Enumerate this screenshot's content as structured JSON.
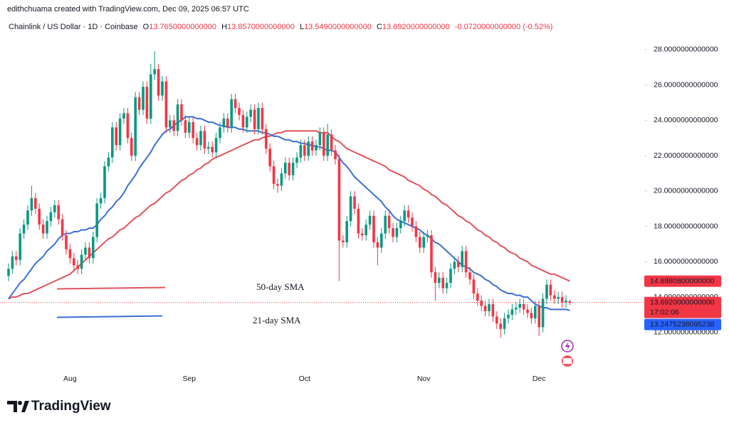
{
  "header": {
    "attribution": "edithchuama created with TradingView.com, Dec 09, 2025 06:57 UTC"
  },
  "chart_data": {
    "type": "candlestick",
    "title": "Chainlink / US Dollar · 1D · Coinbase",
    "ohlc_legend": [
      {
        "key": "O",
        "text": "13.7650000000000"
      },
      {
        "key": "H",
        "text": "13.8570000000000"
      },
      {
        "key": "L",
        "text": "13.5490000000000"
      },
      {
        "key": "C",
        "text": "13.6920000000000"
      }
    ],
    "change_text": "-0.0720000000000 (-0.52%)",
    "categories": [
      null,
      null,
      null,
      null,
      null,
      null,
      null,
      null,
      null,
      null,
      null,
      null,
      null,
      null,
      null,
      null,
      "Aug",
      null,
      null,
      null,
      null,
      null,
      null,
      null,
      null,
      null,
      null,
      null,
      null,
      null,
      null,
      null,
      null,
      null,
      null,
      null,
      null,
      null,
      null,
      null,
      null,
      null,
      null,
      null,
      null,
      null,
      null,
      "Sep",
      null,
      null,
      null,
      null,
      null,
      null,
      null,
      null,
      null,
      null,
      null,
      null,
      null,
      null,
      null,
      null,
      null,
      null,
      null,
      null,
      null,
      null,
      null,
      null,
      null,
      null,
      null,
      null,
      null,
      "Oct",
      null,
      null,
      null,
      null,
      null,
      null,
      null,
      null,
      null,
      null,
      null,
      null,
      null,
      null,
      null,
      null,
      null,
      null,
      null,
      null,
      null,
      null,
      null,
      null,
      null,
      null,
      null,
      null,
      null,
      null,
      "Nov",
      null,
      null,
      null,
      null,
      null,
      null,
      null,
      null,
      null,
      null,
      null,
      null,
      null,
      null,
      null,
      null,
      null,
      null,
      null,
      null,
      null,
      null,
      null,
      null,
      null,
      null,
      null,
      null,
      null,
      "Dec",
      null,
      null,
      null,
      null,
      null,
      null,
      null,
      null
    ],
    "ohlc": [
      [
        15.2,
        15.9,
        14.9,
        15.6
      ],
      [
        15.6,
        16.6,
        15.3,
        16.3
      ],
      [
        16.3,
        16.6,
        15.8,
        16.1
      ],
      [
        16.1,
        17.9,
        15.8,
        17.6
      ],
      [
        17.6,
        18.4,
        17.3,
        18.1
      ],
      [
        18.1,
        19.2,
        17.8,
        18.9
      ],
      [
        18.9,
        20.3,
        18.6,
        19.6
      ],
      [
        19.6,
        19.9,
        18.7,
        19.0
      ],
      [
        19.0,
        19.3,
        17.8,
        18.1
      ],
      [
        18.1,
        18.4,
        17.3,
        17.6
      ],
      [
        17.6,
        18.6,
        17.3,
        18.3
      ],
      [
        18.3,
        19.1,
        18.0,
        18.8
      ],
      [
        18.8,
        19.5,
        18.5,
        19.2
      ],
      [
        19.2,
        19.5,
        18.1,
        18.4
      ],
      [
        18.4,
        18.7,
        17.2,
        17.5
      ],
      [
        17.5,
        17.8,
        16.4,
        16.7
      ],
      [
        16.7,
        17.0,
        15.9,
        16.2
      ],
      [
        16.2,
        16.5,
        15.5,
        15.8
      ],
      [
        15.8,
        16.1,
        15.3,
        15.6
      ],
      [
        15.6,
        16.7,
        15.3,
        16.4
      ],
      [
        16.4,
        17.1,
        16.1,
        16.8
      ],
      [
        16.8,
        17.1,
        15.9,
        16.2
      ],
      [
        16.2,
        17.7,
        15.9,
        17.4
      ],
      [
        17.4,
        19.6,
        17.1,
        19.3
      ],
      [
        19.3,
        19.9,
        19.0,
        19.6
      ],
      [
        19.6,
        21.7,
        19.3,
        21.4
      ],
      [
        21.4,
        22.2,
        21.1,
        21.9
      ],
      [
        21.9,
        23.9,
        21.6,
        23.6
      ],
      [
        23.6,
        23.9,
        22.3,
        22.6
      ],
      [
        22.6,
        24.4,
        22.3,
        24.1
      ],
      [
        24.1,
        24.7,
        23.8,
        24.4
      ],
      [
        24.4,
        24.7,
        22.7,
        23.0
      ],
      [
        23.0,
        23.3,
        21.7,
        22.0
      ],
      [
        22.0,
        25.6,
        21.7,
        25.3
      ],
      [
        25.3,
        25.6,
        24.3,
        24.6
      ],
      [
        24.6,
        26.2,
        24.3,
        25.9
      ],
      [
        25.9,
        26.2,
        23.8,
        24.1
      ],
      [
        24.1,
        27.2,
        23.8,
        26.6
      ],
      [
        26.6,
        27.9,
        26.3,
        26.9
      ],
      [
        26.9,
        27.2,
        25.1,
        25.4
      ],
      [
        25.4,
        26.5,
        25.1,
        26.2
      ],
      [
        26.2,
        26.5,
        23.3,
        23.6
      ],
      [
        23.6,
        24.3,
        23.3,
        24.0
      ],
      [
        24.0,
        24.3,
        23.1,
        23.4
      ],
      [
        23.4,
        25.2,
        23.1,
        24.9
      ],
      [
        24.9,
        25.2,
        23.7,
        24.0
      ],
      [
        24.0,
        24.3,
        23.0,
        23.3
      ],
      [
        23.3,
        24.2,
        23.0,
        23.9
      ],
      [
        23.9,
        24.2,
        22.7,
        23.0
      ],
      [
        23.0,
        23.3,
        22.3,
        22.6
      ],
      [
        22.6,
        23.7,
        22.3,
        23.4
      ],
      [
        23.4,
        23.7,
        22.1,
        22.4
      ],
      [
        22.4,
        22.8,
        22.1,
        22.5
      ],
      [
        22.5,
        22.8,
        21.9,
        22.2
      ],
      [
        22.2,
        23.3,
        21.9,
        23.0
      ],
      [
        23.0,
        23.9,
        22.7,
        23.6
      ],
      [
        23.6,
        24.4,
        23.3,
        24.1
      ],
      [
        24.1,
        24.4,
        23.3,
        23.6
      ],
      [
        23.6,
        25.5,
        23.3,
        25.2
      ],
      [
        25.2,
        25.5,
        24.4,
        24.7
      ],
      [
        24.7,
        25.0,
        24.0,
        24.3
      ],
      [
        24.3,
        24.6,
        23.3,
        23.6
      ],
      [
        23.6,
        24.5,
        23.3,
        24.2
      ],
      [
        24.2,
        24.9,
        23.9,
        24.6
      ],
      [
        24.6,
        24.9,
        23.2,
        23.5
      ],
      [
        23.5,
        25.0,
        23.2,
        24.7
      ],
      [
        24.7,
        25.0,
        23.2,
        23.5
      ],
      [
        23.5,
        23.8,
        22.1,
        22.4
      ],
      [
        22.4,
        22.7,
        21.1,
        21.4
      ],
      [
        21.4,
        21.7,
        20.1,
        20.4
      ],
      [
        20.4,
        20.7,
        19.9,
        20.3
      ],
      [
        20.3,
        21.3,
        20.0,
        21.0
      ],
      [
        21.0,
        21.9,
        20.7,
        21.6
      ],
      [
        21.6,
        21.9,
        20.6,
        20.9
      ],
      [
        20.9,
        21.9,
        20.6,
        21.6
      ],
      [
        21.6,
        22.2,
        21.3,
        21.9
      ],
      [
        21.9,
        22.9,
        21.6,
        22.6
      ],
      [
        22.6,
        22.9,
        21.7,
        22.0
      ],
      [
        22.0,
        23.1,
        21.7,
        22.8
      ],
      [
        22.8,
        23.1,
        22.0,
        22.3
      ],
      [
        22.3,
        22.9,
        22.0,
        22.6
      ],
      [
        22.6,
        23.6,
        22.3,
        23.3
      ],
      [
        23.3,
        23.6,
        21.7,
        22.0
      ],
      [
        22.0,
        23.8,
        21.7,
        23.2
      ],
      [
        23.2,
        23.5,
        22.0,
        22.3
      ],
      [
        22.3,
        22.6,
        21.5,
        21.8
      ],
      [
        21.8,
        22.1,
        14.9,
        17.2
      ],
      [
        17.2,
        17.5,
        16.8,
        17.1
      ],
      [
        17.1,
        18.6,
        16.8,
        18.3
      ],
      [
        18.3,
        20.0,
        18.0,
        19.7
      ],
      [
        19.7,
        20.0,
        18.7,
        19.0
      ],
      [
        19.0,
        19.3,
        17.3,
        17.6
      ],
      [
        17.6,
        17.9,
        17.2,
        17.5
      ],
      [
        17.5,
        18.4,
        17.2,
        18.1
      ],
      [
        18.1,
        18.9,
        17.8,
        18.6
      ],
      [
        18.6,
        18.9,
        16.8,
        17.1
      ],
      [
        17.1,
        17.4,
        15.8,
        16.8
      ],
      [
        16.8,
        17.9,
        16.5,
        17.6
      ],
      [
        17.6,
        18.9,
        17.3,
        18.6
      ],
      [
        18.6,
        18.9,
        17.6,
        17.9
      ],
      [
        17.9,
        18.2,
        17.1,
        17.4
      ],
      [
        17.4,
        18.2,
        17.1,
        17.9
      ],
      [
        17.9,
        18.6,
        17.6,
        18.3
      ],
      [
        18.3,
        19.2,
        18.0,
        18.9
      ],
      [
        18.9,
        19.2,
        18.2,
        18.5
      ],
      [
        18.5,
        18.8,
        17.7,
        18.0
      ],
      [
        18.0,
        18.3,
        17.1,
        17.4
      ],
      [
        17.4,
        17.7,
        16.5,
        16.8
      ],
      [
        16.8,
        17.7,
        16.5,
        17.4
      ],
      [
        17.4,
        17.8,
        17.1,
        17.5
      ],
      [
        17.5,
        17.8,
        15.1,
        15.4
      ],
      [
        15.4,
        15.7,
        13.8,
        14.8
      ],
      [
        14.8,
        15.4,
        14.5,
        15.1
      ],
      [
        15.1,
        15.4,
        14.2,
        14.5
      ],
      [
        14.5,
        15.1,
        14.2,
        14.8
      ],
      [
        14.8,
        15.9,
        14.5,
        15.6
      ],
      [
        15.6,
        16.3,
        15.3,
        16.0
      ],
      [
        16.0,
        16.3,
        15.4,
        15.7
      ],
      [
        15.7,
        16.9,
        15.4,
        16.6
      ],
      [
        16.6,
        16.9,
        15.1,
        15.4
      ],
      [
        15.4,
        15.7,
        14.7,
        15.0
      ],
      [
        15.0,
        15.3,
        13.9,
        14.2
      ],
      [
        14.2,
        14.5,
        13.5,
        13.8
      ],
      [
        13.8,
        14.1,
        13.2,
        13.5
      ],
      [
        13.5,
        13.8,
        12.9,
        13.2
      ],
      [
        13.2,
        13.9,
        12.9,
        13.6
      ],
      [
        13.6,
        13.9,
        12.6,
        12.9
      ],
      [
        12.9,
        13.2,
        12.2,
        12.5
      ],
      [
        12.5,
        12.8,
        11.7,
        12.2
      ],
      [
        12.2,
        13.1,
        11.9,
        12.8
      ],
      [
        12.8,
        13.3,
        12.5,
        13.0
      ],
      [
        13.0,
        13.6,
        12.7,
        13.3
      ],
      [
        13.3,
        13.7,
        13.0,
        13.4
      ],
      [
        13.4,
        13.9,
        13.1,
        13.6
      ],
      [
        13.6,
        13.9,
        13.0,
        13.3
      ],
      [
        13.3,
        13.6,
        12.8,
        13.1
      ],
      [
        13.1,
        13.4,
        12.5,
        12.8
      ],
      [
        12.8,
        13.8,
        12.5,
        13.5
      ],
      [
        13.5,
        13.8,
        11.8,
        12.3
      ],
      [
        12.3,
        14.2,
        12.0,
        13.9
      ],
      [
        13.9,
        15.0,
        13.6,
        14.7
      ],
      [
        14.7,
        15.0,
        13.8,
        14.1
      ],
      [
        14.1,
        14.4,
        13.6,
        13.9
      ],
      [
        13.9,
        14.3,
        13.6,
        14.0
      ],
      [
        14.0,
        14.3,
        13.4,
        13.7
      ],
      [
        13.7,
        14.1,
        13.4,
        13.8
      ],
      [
        13.765,
        13.857,
        13.549,
        13.692
      ]
    ],
    "up_color": "#089981",
    "down_color": "#f23645",
    "series": [
      {
        "name": "50-day SMA",
        "color": "#e0535c",
        "values": [
          13.9,
          14.0,
          14.0,
          14.1,
          14.2,
          14.2,
          14.3,
          14.4,
          14.5,
          14.6,
          14.7,
          14.8,
          14.9,
          15.0,
          15.1,
          15.2,
          15.3,
          15.5,
          15.7,
          15.9,
          16.1,
          16.3,
          16.5,
          16.7,
          16.9,
          17.1,
          17.3,
          17.4,
          17.6,
          17.8,
          17.9,
          18.1,
          18.3,
          18.5,
          18.6,
          18.8,
          19.0,
          19.2,
          19.3,
          19.5,
          19.7,
          19.9,
          20.0,
          20.2,
          20.4,
          20.6,
          20.7,
          20.9,
          21.0,
          21.2,
          21.3,
          21.5,
          21.6,
          21.8,
          21.9,
          22.0,
          22.1,
          22.2,
          22.3,
          22.4,
          22.5,
          22.6,
          22.7,
          22.8,
          22.9,
          22.9,
          23.0,
          23.1,
          23.1,
          23.2,
          23.3,
          23.3,
          23.4,
          23.4,
          23.4,
          23.4,
          23.4,
          23.4,
          23.4,
          23.4,
          23.4,
          23.3,
          23.3,
          23.3,
          23.1,
          22.9,
          22.8,
          22.6,
          22.4,
          22.3,
          22.2,
          22.1,
          22.0,
          21.9,
          21.8,
          21.7,
          21.6,
          21.5,
          21.4,
          21.2,
          21.1,
          21.0,
          20.9,
          20.8,
          20.6,
          20.5,
          20.4,
          20.3,
          20.1,
          20.0,
          19.8,
          19.7,
          19.5,
          19.3,
          19.2,
          19.0,
          18.8,
          18.6,
          18.5,
          18.3,
          18.2,
          18.0,
          17.8,
          17.7,
          17.5,
          17.4,
          17.2,
          17.1,
          16.9,
          16.8,
          16.6,
          16.5,
          16.4,
          16.2,
          16.1,
          16.0,
          15.8,
          15.7,
          15.6,
          15.5,
          15.4,
          15.3,
          15.3,
          15.2,
          15.1,
          15.0,
          14.89808
        ]
      },
      {
        "name": "21-day SMA",
        "color": "#3b6fd4",
        "values": [
          13.9,
          14.2,
          14.5,
          14.8,
          15.0,
          15.3,
          15.6,
          15.9,
          16.1,
          16.3,
          16.6,
          16.8,
          17.0,
          17.3,
          17.5,
          17.6,
          17.6,
          17.7,
          17.7,
          17.8,
          17.8,
          17.9,
          17.9,
          18.1,
          18.4,
          18.6,
          18.9,
          19.1,
          19.4,
          19.6,
          19.9,
          20.3,
          20.6,
          20.9,
          21.3,
          21.6,
          21.9,
          22.2,
          22.6,
          22.9,
          23.2,
          23.4,
          23.5,
          23.7,
          23.9,
          24.0,
          24.2,
          24.2,
          24.2,
          24.1,
          24.1,
          24.0,
          23.9,
          23.9,
          23.8,
          23.7,
          23.7,
          23.6,
          23.6,
          23.6,
          23.5,
          23.5,
          23.4,
          23.4,
          23.4,
          23.4,
          23.3,
          23.3,
          23.2,
          23.1,
          23.1,
          23.0,
          22.9,
          22.9,
          22.8,
          22.8,
          22.7,
          22.7,
          22.6,
          22.6,
          22.5,
          22.5,
          22.4,
          22.3,
          22.3,
          22.2,
          21.9,
          21.6,
          21.4,
          21.1,
          20.8,
          20.6,
          20.4,
          20.2,
          20.0,
          19.8,
          19.6,
          19.4,
          19.1,
          18.9,
          18.6,
          18.4,
          18.3,
          18.2,
          18.1,
          18.0,
          17.9,
          17.8,
          17.6,
          17.5,
          17.3,
          17.1,
          17.0,
          16.8,
          16.6,
          16.4,
          16.2,
          16.0,
          15.8,
          15.7,
          15.6,
          15.4,
          15.3,
          15.2,
          15.0,
          14.9,
          14.7,
          14.6,
          14.4,
          14.3,
          14.2,
          14.2,
          14.1,
          14.1,
          14.0,
          14.0,
          13.8,
          13.6,
          13.5,
          13.4,
          13.4,
          13.3,
          13.3,
          13.3,
          13.3,
          13.3,
          13.2475238095238
        ]
      }
    ],
    "ylim": [
      10.1,
      29.0
    ],
    "yticks": [
      {
        "value": 12,
        "label": "12.0000000000000"
      },
      {
        "value": 14,
        "label": "14.0000000000000"
      },
      {
        "value": 16,
        "label": "16.0000000000000"
      },
      {
        "value": 18,
        "label": "18.0000000000000"
      },
      {
        "value": 20,
        "label": "20.0000000000000"
      },
      {
        "value": 22,
        "label": "22.0000000000000"
      },
      {
        "value": 24,
        "label": "24.0000000000000"
      },
      {
        "value": 26,
        "label": "26.0000000000000"
      },
      {
        "value": 28,
        "label": "28.0000000000000"
      }
    ],
    "price_tags": [
      {
        "value": 14.89808,
        "label": "14.8980800000000",
        "color": "#f23645"
      },
      {
        "value": 13.692,
        "label": "13.6920000000000",
        "color": "#f23645",
        "countdown": "17:02:06"
      },
      {
        "value": 13.2475238095238,
        "label": "13.2475238095238",
        "color": "#2962ff"
      }
    ],
    "grid": false
  },
  "footer": {
    "brand": "TradingView"
  }
}
